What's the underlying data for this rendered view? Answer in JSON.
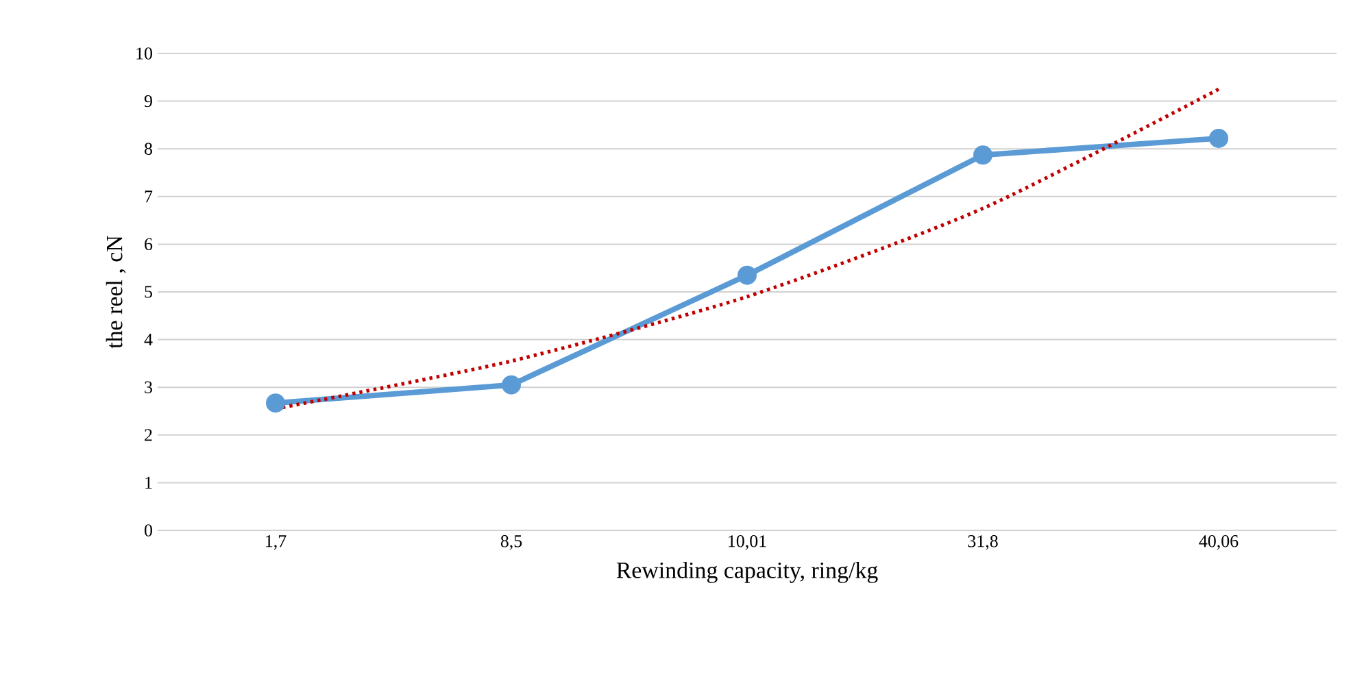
{
  "chart_data": {
    "type": "line",
    "xlabel": "Rewinding capacity, ring/kg",
    "ylabel": "the reel , cN",
    "categories": [
      "1,7",
      "8,5",
      "10,01",
      "31,8",
      "40,06"
    ],
    "series": [
      {
        "color": "#5b9bd5",
        "values": [
          2.67,
          3.05,
          5.35,
          7.87,
          8.22
        ],
        "marker": "circle",
        "line_style": "solid"
      },
      {
        "type": "line",
        "color": "#c00000",
        "values": [
          2.55,
          3.55,
          4.9,
          6.75,
          9.25
        ],
        "marker": "none",
        "line_style": "dotted"
      }
    ],
    "ylim": [
      0,
      10
    ],
    "yticks": [
      0,
      1,
      2,
      3,
      4,
      5,
      6,
      7,
      8,
      9,
      10
    ],
    "grid": "y"
  }
}
